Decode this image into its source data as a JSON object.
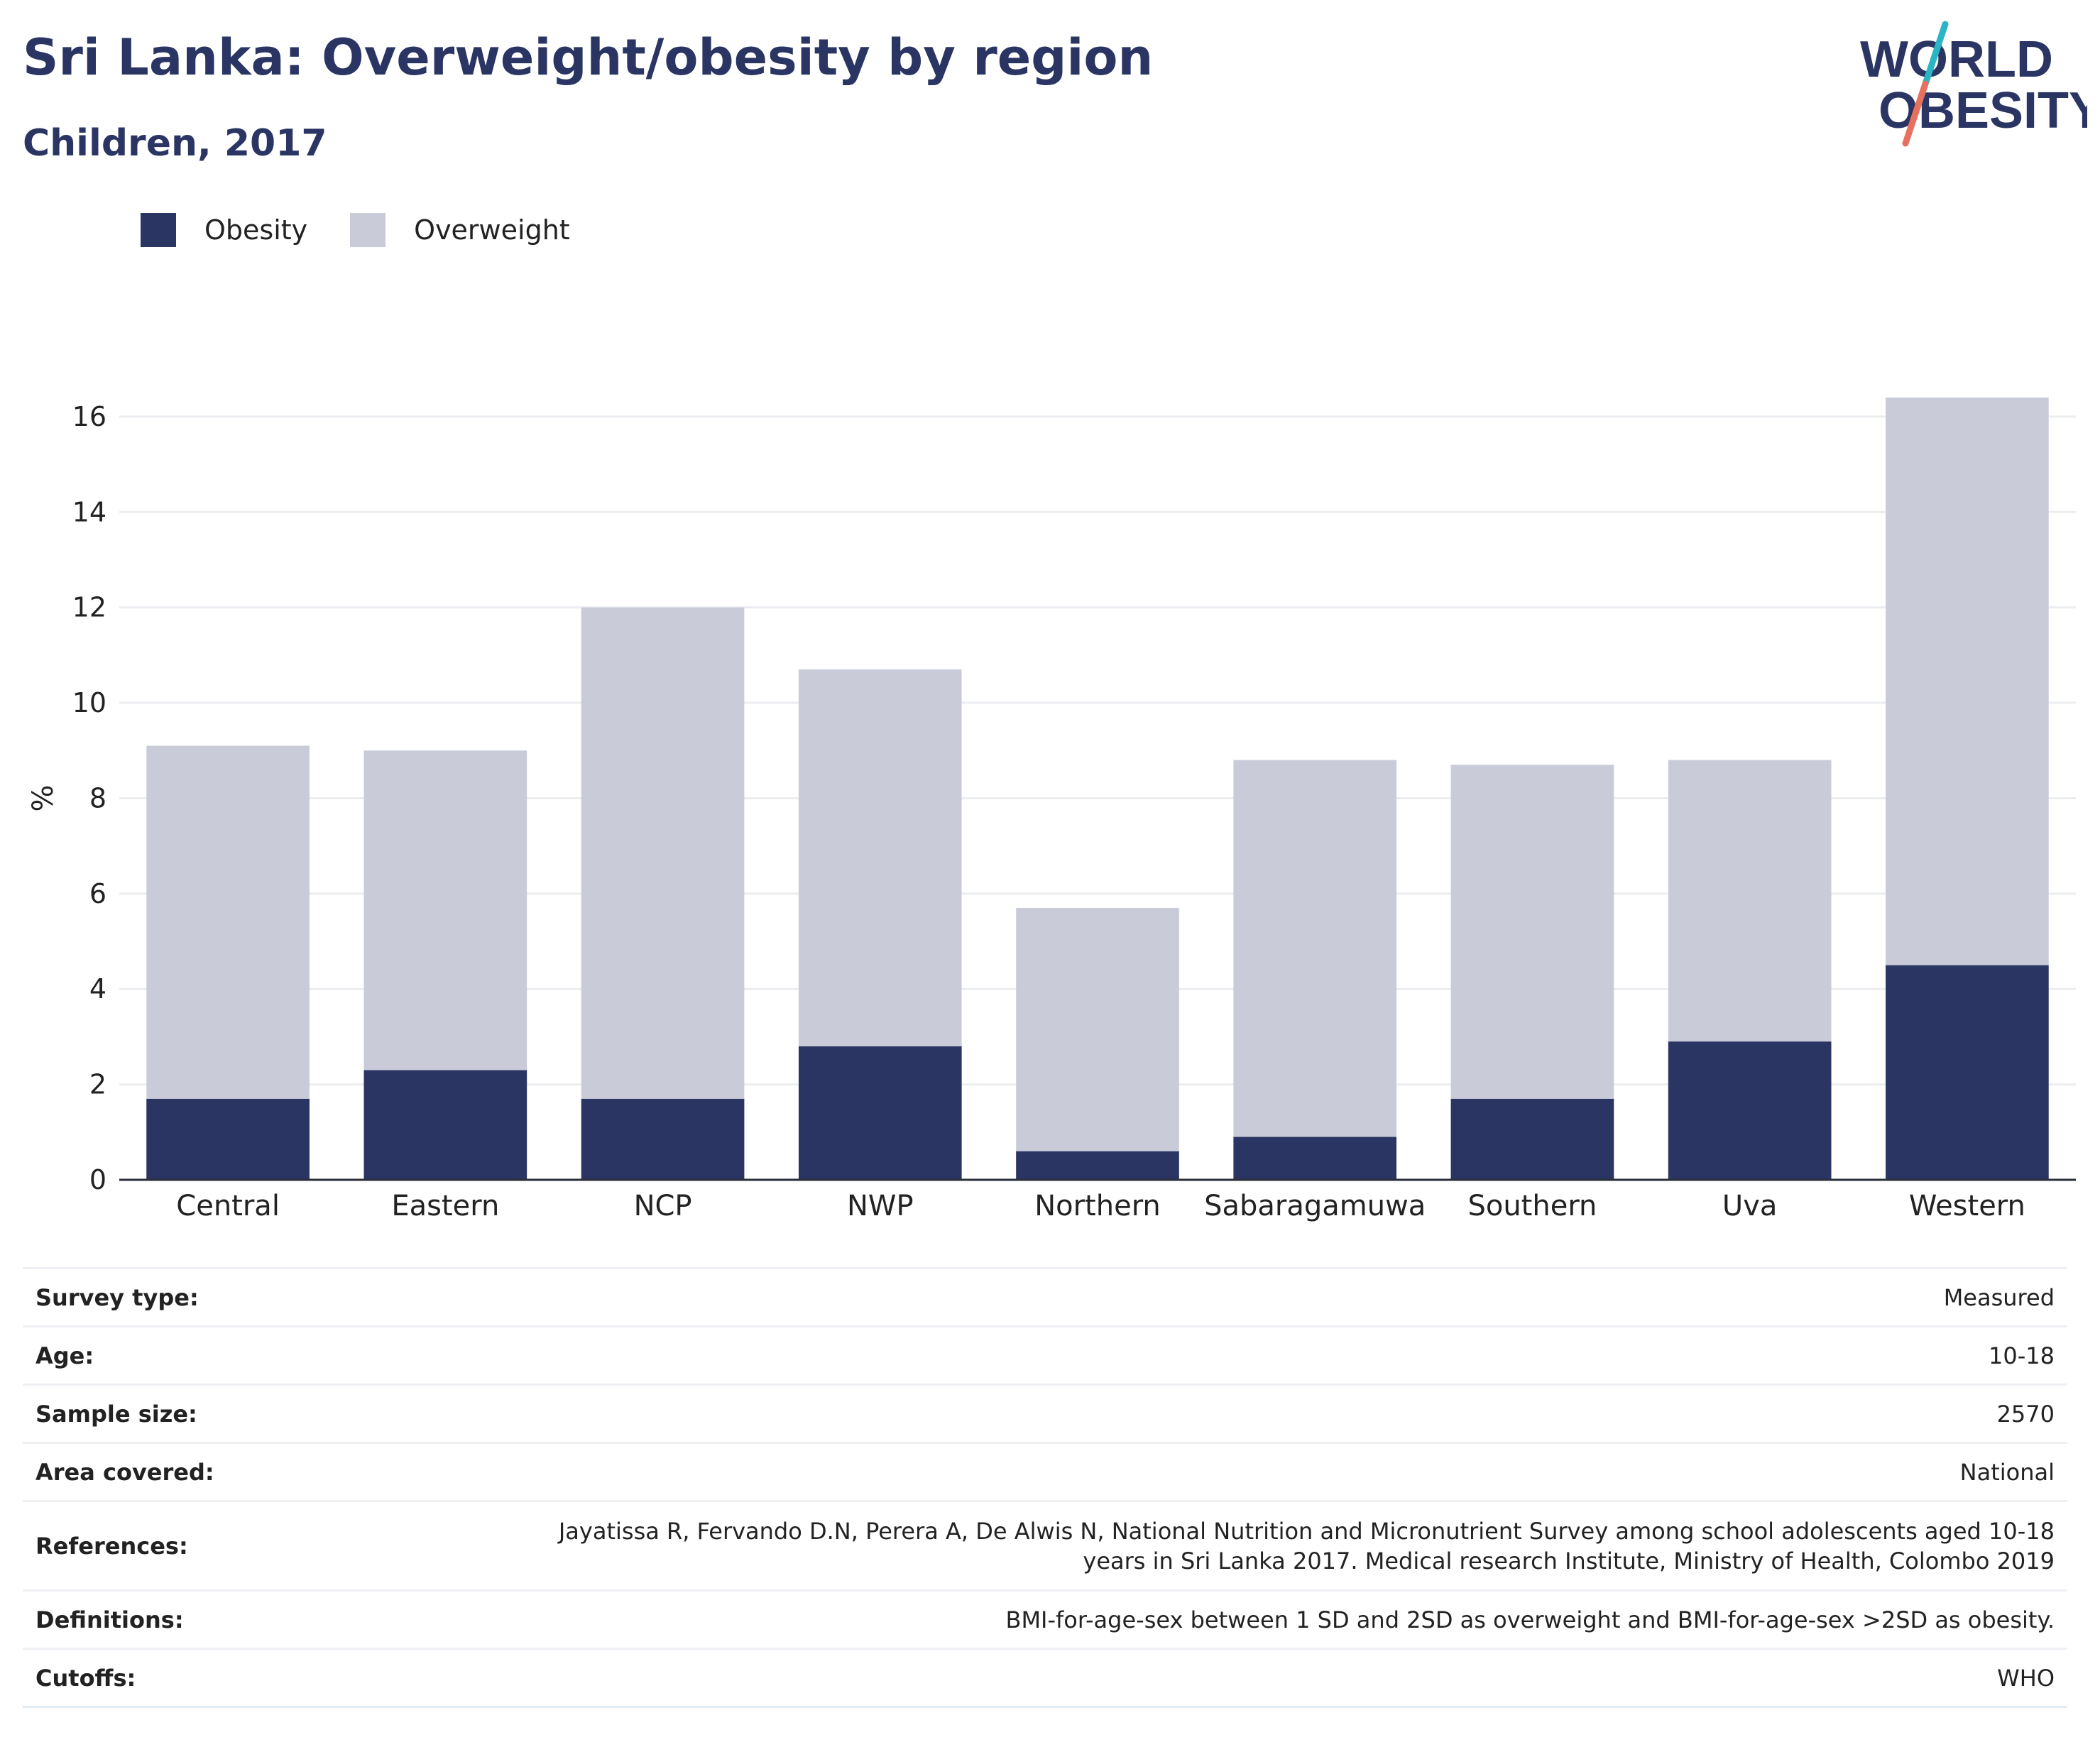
{
  "header": {
    "title": "Sri Lanka: Overweight/obesity by region",
    "subtitle": "Children, 2017"
  },
  "logo": {
    "line1": "WORLD",
    "line2": "OBESITY",
    "colors": {
      "text": "#2a3563",
      "slash_teal": "#2bb5c4",
      "slash_coral": "#e8705f"
    }
  },
  "legend": [
    {
      "label": "Obesity",
      "color": "#2a3563"
    },
    {
      "label": "Overweight",
      "color": "#c9ccd8"
    }
  ],
  "chart_data": {
    "type": "bar",
    "stacked": true,
    "categories": [
      "Central",
      "Eastern",
      "NCP",
      "NWP",
      "Northern",
      "Sabaragamuwa",
      "Southern",
      "Uva",
      "Western"
    ],
    "series": [
      {
        "name": "Obesity",
        "color": "#2a3563",
        "values": [
          1.7,
          2.3,
          1.7,
          2.8,
          0.6,
          0.9,
          1.7,
          2.9,
          4.5
        ]
      },
      {
        "name": "Overweight",
        "color": "#c9ccd8",
        "values": [
          7.4,
          6.7,
          10.3,
          7.9,
          5.1,
          7.9,
          7.0,
          5.9,
          11.9
        ]
      }
    ],
    "ylabel": "%",
    "xlabel": "",
    "ylim": [
      0,
      16.4
    ],
    "yticks": [
      0,
      2,
      4,
      6,
      8,
      10,
      12,
      14,
      16
    ],
    "grid": true,
    "legend_position": "top-left"
  },
  "info": [
    {
      "key": "Survey type:",
      "value": "Measured"
    },
    {
      "key": "Age:",
      "value": "10-18"
    },
    {
      "key": "Sample size:",
      "value": "2570"
    },
    {
      "key": "Area covered:",
      "value": "National"
    },
    {
      "key": "References:",
      "value_lines": [
        "Jayatissa R, Fervando D.N, Perera A, De Alwis N, National Nutrition and Micronutrient Survey among school adolescents aged 10-18",
        "years in Sri Lanka 2017. Medical research Institute, Ministry of Health, Colombo 2019"
      ]
    },
    {
      "key": "Definitions:",
      "value": "BMI-for-age-sex between 1 SD and 2SD as overweight and BMI-for-age-sex >2SD as obesity."
    },
    {
      "key": "Cutoffs:",
      "value": "WHO"
    }
  ]
}
